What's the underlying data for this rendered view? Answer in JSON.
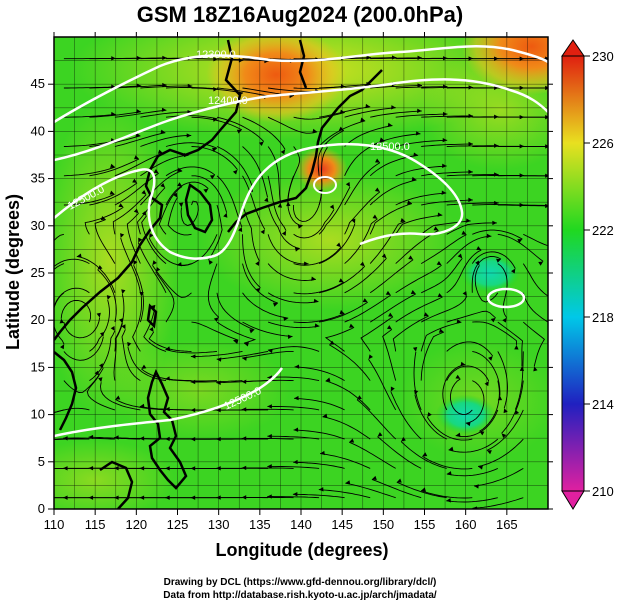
{
  "title": "GSM 18Z16Aug2024 (200.0hPa)",
  "x_axis": {
    "label": "Longitude (degrees)",
    "min": 110,
    "max": 170,
    "ticks": [
      "110",
      "115",
      "120",
      "125",
      "130",
      "135",
      "140",
      "145",
      "150",
      "155",
      "160",
      "165"
    ]
  },
  "y_axis": {
    "label": "Latitude (degrees)",
    "min": 0,
    "max": 50,
    "ticks": [
      "0",
      "5",
      "10",
      "15",
      "20",
      "25",
      "30",
      "35",
      "40",
      "45"
    ]
  },
  "colorbar": {
    "min": 210,
    "max": 230,
    "tick_labels": [
      "210",
      "214",
      "218",
      "222",
      "226",
      "230"
    ],
    "stops": [
      "#e020a0",
      "#2020c0",
      "#00c8e8",
      "#20d820",
      "#e8e020",
      "#e02010"
    ]
  },
  "contours": {
    "color": "#ffffff",
    "labels": [
      "12300.0",
      "12400.0",
      "12500.0",
      "12500.0",
      "12500.0"
    ]
  },
  "field": {
    "type": "temperature-K",
    "highs": [
      {
        "lon": 137,
        "lat": 46,
        "value": 229
      },
      {
        "lon": 142.5,
        "lat": 36,
        "value": 228
      },
      {
        "lon": 168,
        "lat": 49,
        "value": 229
      }
    ],
    "lows": [
      {
        "lon": 163,
        "lat": 25,
        "value": 219
      },
      {
        "lon": 160,
        "lat": 10,
        "value": 221.5
      }
    ]
  },
  "credits": {
    "line1": "Drawing by DCL (https://www.gfd-dennou.org/library/dcl/)",
    "line2": "Data from http://database.rish.kyoto-u.ac.jp/arch/jmadata/"
  }
}
